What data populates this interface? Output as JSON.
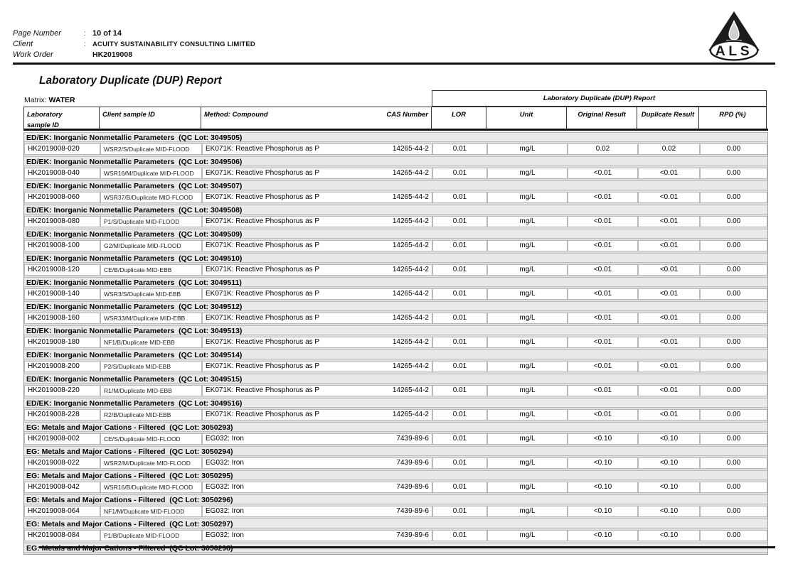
{
  "header": {
    "fields": [
      {
        "label": "Page Number",
        "sep": ":",
        "value": "10 of 14"
      },
      {
        "label": "Client",
        "sep": ":",
        "value": "ACUITY SUSTAINABILITY CONSULTING LIMITED"
      },
      {
        "label": "Work Order",
        "sep": "",
        "value": "HK2019008"
      }
    ],
    "logo_text": "ALS"
  },
  "title": "Laboratory Duplicate (DUP) Report",
  "matrix": {
    "label": "Matrix:",
    "value": "WATER"
  },
  "table": {
    "group_header": "Laboratory Duplicate (DUP) Report",
    "columns": {
      "lab": "Laboratory\nsample ID",
      "client": "Client sample ID",
      "method": "Method: Compound",
      "cas": "CAS Number",
      "lor": "LOR",
      "unit": "Unit",
      "orig": "Original Result",
      "dup": "Duplicate Result",
      "rpd": "RPD (%)"
    },
    "sections": [
      {
        "title": "ED/EK: Inorganic Nonmetallic Parameters  (QC Lot: 3049505)",
        "rows": [
          [
            "HK2019008-020",
            "WSR2/S/Duplicate MID-FLOOD",
            "EK071K: Reactive Phosphorus as P",
            "14265-44-2",
            "0.01",
            "mg/L",
            "0.02",
            "0.02",
            "0.00"
          ]
        ]
      },
      {
        "title": "ED/EK: Inorganic Nonmetallic Parameters  (QC Lot: 3049506)",
        "rows": [
          [
            "HK2019008-040",
            "WSR16/M/Duplicate MID-FLOOD",
            "EK071K: Reactive Phosphorus as P",
            "14265-44-2",
            "0.01",
            "mg/L",
            "<0.01",
            "<0.01",
            "0.00"
          ]
        ]
      },
      {
        "title": "ED/EK: Inorganic Nonmetallic Parameters  (QC Lot: 3049507)",
        "rows": [
          [
            "HK2019008-060",
            "WSR37/B/Duplicate MID-FLOOD",
            "EK071K: Reactive Phosphorus as P",
            "14265-44-2",
            "0.01",
            "mg/L",
            "<0.01",
            "<0.01",
            "0.00"
          ]
        ]
      },
      {
        "title": "ED/EK: Inorganic Nonmetallic Parameters  (QC Lot: 3049508)",
        "rows": [
          [
            "HK2019008-080",
            "P1/S/Duplicate MID-FLOOD",
            "EK071K: Reactive Phosphorus as P",
            "14265-44-2",
            "0.01",
            "mg/L",
            "<0.01",
            "<0.01",
            "0.00"
          ]
        ]
      },
      {
        "title": "ED/EK: Inorganic Nonmetallic Parameters  (QC Lot: 3049509)",
        "rows": [
          [
            "HK2019008-100",
            "G2/M/Duplicate MID-FLOOD",
            "EK071K: Reactive Phosphorus as P",
            "14265-44-2",
            "0.01",
            "mg/L",
            "<0.01",
            "<0.01",
            "0.00"
          ]
        ]
      },
      {
        "title": "ED/EK: Inorganic Nonmetallic Parameters  (QC Lot: 3049510)",
        "rows": [
          [
            "HK2019008-120",
            "CE/B/Duplicate MID-EBB",
            "EK071K: Reactive Phosphorus as P",
            "14265-44-2",
            "0.01",
            "mg/L",
            "<0.01",
            "<0.01",
            "0.00"
          ]
        ]
      },
      {
        "title": "ED/EK: Inorganic Nonmetallic Parameters  (QC Lot: 3049511)",
        "rows": [
          [
            "HK2019008-140",
            "WSR3/S/Duplicate MID-EBB",
            "EK071K: Reactive Phosphorus as P",
            "14265-44-2",
            "0.01",
            "mg/L",
            "<0.01",
            "<0.01",
            "0.00"
          ]
        ]
      },
      {
        "title": "ED/EK: Inorganic Nonmetallic Parameters  (QC Lot: 3049512)",
        "rows": [
          [
            "HK2019008-160",
            "WSR33/M/Duplicate MID-EBB",
            "EK071K: Reactive Phosphorus as P",
            "14265-44-2",
            "0.01",
            "mg/L",
            "<0.01",
            "<0.01",
            "0.00"
          ]
        ]
      },
      {
        "title": "ED/EK: Inorganic Nonmetallic Parameters  (QC Lot: 3049513)",
        "rows": [
          [
            "HK2019008-180",
            "NF1/B/Duplicate MID-EBB",
            "EK071K: Reactive Phosphorus as P",
            "14265-44-2",
            "0.01",
            "mg/L",
            "<0.01",
            "<0.01",
            "0.00"
          ]
        ]
      },
      {
        "title": "ED/EK: Inorganic Nonmetallic Parameters  (QC Lot: 3049514)",
        "rows": [
          [
            "HK2019008-200",
            "P2/S/Duplicate MID-EBB",
            "EK071K: Reactive Phosphorus as P",
            "14265-44-2",
            "0.01",
            "mg/L",
            "<0.01",
            "<0.01",
            "0.00"
          ]
        ]
      },
      {
        "title": "ED/EK: Inorganic Nonmetallic Parameters  (QC Lot: 3049515)",
        "rows": [
          [
            "HK2019008-220",
            "R1/M/Duplicate MID-EBB",
            "EK071K: Reactive Phosphorus as P",
            "14265-44-2",
            "0.01",
            "mg/L",
            "<0.01",
            "<0.01",
            "0.00"
          ]
        ]
      },
      {
        "title": "ED/EK: Inorganic Nonmetallic Parameters  (QC Lot: 3049516)",
        "rows": [
          [
            "HK2019008-228",
            "R2/B/Duplicate MID-EBB",
            "EK071K: Reactive Phosphorus as P",
            "14265-44-2",
            "0.01",
            "mg/L",
            "<0.01",
            "<0.01",
            "0.00"
          ]
        ]
      },
      {
        "title": "EG: Metals and Major Cations - Filtered  (QC Lot: 3050293)",
        "rows": [
          [
            "HK2019008-002",
            "CE/S/Duplicate MID-FLOOD",
            "EG032: Iron",
            "7439-89-6",
            "0.01",
            "mg/L",
            "<0.10",
            "<0.10",
            "0.00"
          ]
        ]
      },
      {
        "title": "EG: Metals and Major Cations - Filtered  (QC Lot: 3050294)",
        "rows": [
          [
            "HK2019008-022",
            "WSR2/M/Duplicate MID-FLOOD",
            "EG032: Iron",
            "7439-89-6",
            "0.01",
            "mg/L",
            "<0.10",
            "<0.10",
            "0.00"
          ]
        ]
      },
      {
        "title": "EG: Metals and Major Cations - Filtered  (QC Lot: 3050295)",
        "rows": [
          [
            "HK2019008-042",
            "WSR16/B/Duplicate MID-FLOOD",
            "EG032: Iron",
            "7439-89-6",
            "0.01",
            "mg/L",
            "<0.10",
            "<0.10",
            "0.00"
          ]
        ]
      },
      {
        "title": "EG: Metals and Major Cations - Filtered  (QC Lot: 3050296)",
        "rows": [
          [
            "HK2019008-064",
            "NF1/M/Duplicate MID-FLOOD",
            "EG032: Iron",
            "7439-89-6",
            "0.01",
            "mg/L",
            "<0.10",
            "<0.10",
            "0.00"
          ]
        ]
      },
      {
        "title": "EG: Metals and Major Cations - Filtered  (QC Lot: 3050297)",
        "rows": [
          [
            "HK2019008-084",
            "P1/B/Duplicate MID-FLOOD",
            "EG032: Iron",
            "7439-89-6",
            "0.01",
            "mg/L",
            "<0.10",
            "<0.10",
            "0.00"
          ]
        ]
      },
      {
        "title": "EG: Metals and Major Cations - Filtered  (QC Lot: 3050298)",
        "rows": []
      }
    ]
  }
}
